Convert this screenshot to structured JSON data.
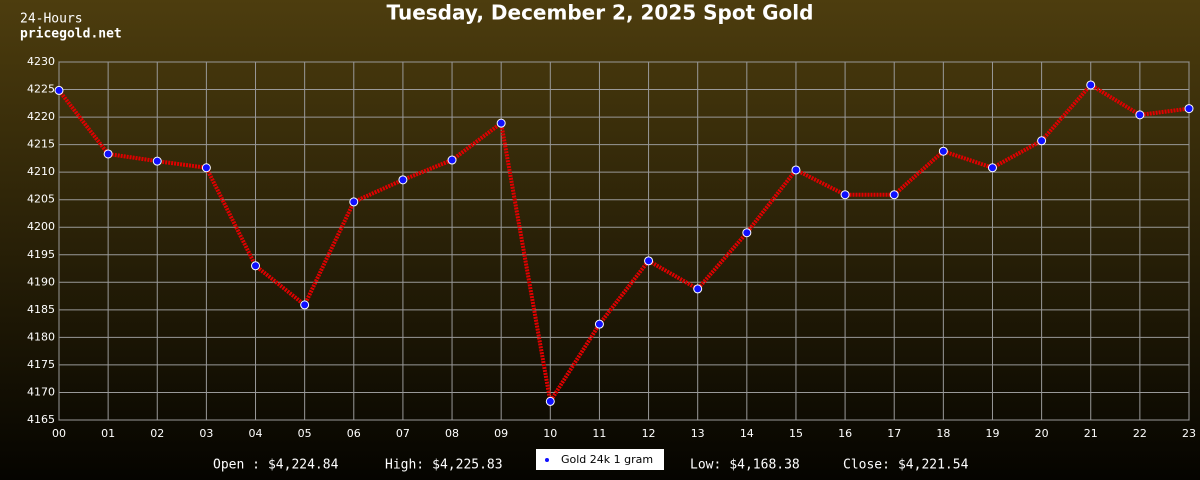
{
  "chart_data": {
    "type": "line",
    "title": "Tuesday, December 2, 2025 Spot Gold",
    "corner_text": [
      "24-Hours",
      "pricegold.net"
    ],
    "categories": [
      "00",
      "01",
      "02",
      "03",
      "04",
      "05",
      "06",
      "07",
      "08",
      "09",
      "10",
      "11",
      "12",
      "13",
      "14",
      "15",
      "16",
      "17",
      "18",
      "19",
      "20",
      "21",
      "22",
      "23"
    ],
    "series": [
      {
        "name": "Gold 24k 1 gram",
        "color": "#e00000",
        "marker_color": "#1010ff",
        "values": [
          4224.84,
          4213.3,
          4212.0,
          4210.8,
          4193.0,
          4185.9,
          4204.6,
          4208.6,
          4212.2,
          4218.9,
          4168.38,
          4182.4,
          4193.9,
          4188.8,
          4199.0,
          4210.4,
          4205.9,
          4205.9,
          4213.8,
          4210.8,
          4215.7,
          4225.83,
          4220.4,
          4221.54
        ]
      }
    ],
    "ylim": [
      4165,
      4230
    ],
    "yticks": [
      4165,
      4170,
      4175,
      4180,
      4185,
      4190,
      4195,
      4200,
      4205,
      4210,
      4215,
      4220,
      4225,
      4230
    ],
    "grid": true,
    "stats": [
      {
        "name": "Open :",
        "value": 4224.84,
        "label": "$4,224.84"
      },
      {
        "name": "High:",
        "value": 4225.83,
        "label": "$4,225.83"
      },
      {
        "name": "Low:",
        "value": 4168.38,
        "label": "$4,168.38"
      },
      {
        "name": "Close:",
        "value": 4221.54,
        "label": "$4,221.54"
      }
    ]
  }
}
